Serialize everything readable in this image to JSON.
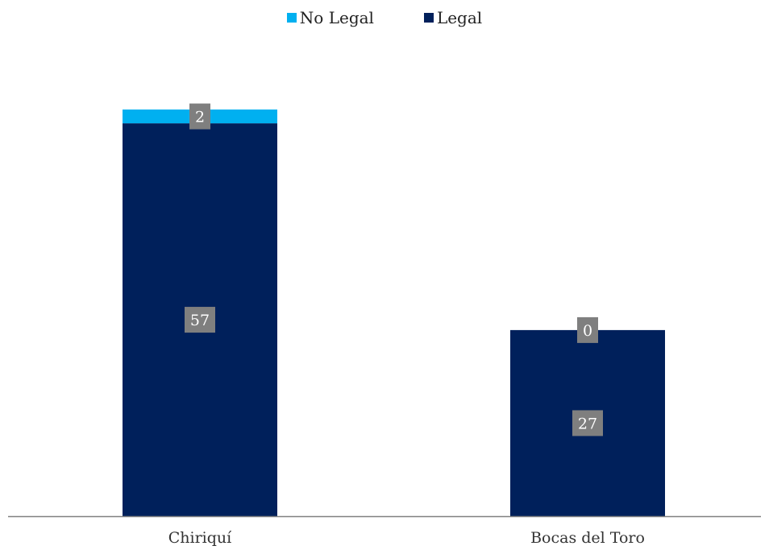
{
  "chart_data": {
    "type": "bar",
    "stacked": true,
    "categories": [
      "Chiriquí",
      "Bocas del Toro"
    ],
    "series": [
      {
        "name": "Legal",
        "values": [
          57,
          27
        ],
        "color": "#00205B"
      },
      {
        "name": "No Legal",
        "values": [
          2,
          0
        ],
        "color": "#00B0F0"
      }
    ],
    "legend_order": [
      "No Legal",
      "Legal"
    ],
    "legend_position": "top-center",
    "grid": false,
    "ylim": [
      0,
      59
    ],
    "data_label_color": "#7F7F7F",
    "axis_color": "#808080"
  }
}
